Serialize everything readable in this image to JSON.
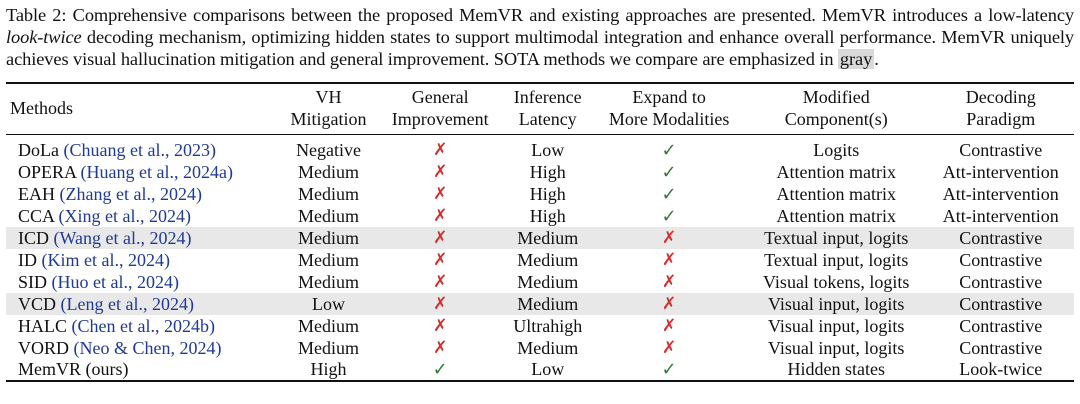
{
  "caption": {
    "label": "Table 2:",
    "part1": " Comprehensive comparisons between the proposed MemVR and existing approaches are presented. MemVR introduces a low-latency ",
    "italic": "look-twice",
    "part2": " decoding mechanism, optimizing hidden states to support multimodal integration and enhance overall performance. MemVR uniquely achieves visual hallucination mitigation and general improvement. SOTA methods we compare are emphasized in ",
    "highlight": "gray",
    "end": "."
  },
  "table": {
    "headers": [
      {
        "line1": "Methods",
        "line2": ""
      },
      {
        "line1": "VH",
        "line2": "Mitigation"
      },
      {
        "line1": "General",
        "line2": "Improvement"
      },
      {
        "line1": "Inference",
        "line2": "Latency"
      },
      {
        "line1": "Expand to",
        "line2": "More Modalities"
      },
      {
        "line1": "Modified",
        "line2": "Component(s)"
      },
      {
        "line1": "Decoding",
        "line2": "Paradigm"
      }
    ],
    "rows": [
      {
        "name": "DoLa",
        "cite": "(Chuang et al., 2023)",
        "vh": "Negative",
        "general": "✗",
        "latency": "Low",
        "expand": "✓",
        "component": "Logits",
        "paradigm": "Contrastive",
        "shaded": false
      },
      {
        "name": "OPERA",
        "cite": "(Huang et al., 2024a)",
        "vh": "Medium",
        "general": "✗",
        "latency": "High",
        "expand": "✓",
        "component": "Attention matrix",
        "paradigm": "Att-intervention",
        "shaded": false
      },
      {
        "name": "EAH",
        "cite": "(Zhang et al., 2024)",
        "vh": "Medium",
        "general": "✗",
        "latency": "High",
        "expand": "✓",
        "component": "Attention matrix",
        "paradigm": "Att-intervention",
        "shaded": false
      },
      {
        "name": "CCA",
        "cite": "(Xing et al., 2024)",
        "vh": "Medium",
        "general": "✗",
        "latency": "High",
        "expand": "✓",
        "component": "Attention matrix",
        "paradigm": "Att-intervention",
        "shaded": false
      },
      {
        "name": "ICD",
        "cite": "(Wang et al., 2024)",
        "vh": "Medium",
        "general": "✗",
        "latency": "Medium",
        "expand": "✗",
        "component": "Textual input, logits",
        "paradigm": "Contrastive",
        "shaded": true
      },
      {
        "name": "ID",
        "cite": "(Kim et al., 2024)",
        "vh": "Medium",
        "general": "✗",
        "latency": "Medium",
        "expand": "✗",
        "component": "Textual input, logits",
        "paradigm": "Contrastive",
        "shaded": false
      },
      {
        "name": "SID",
        "cite": "(Huo et al., 2024)",
        "vh": "Medium",
        "general": "✗",
        "latency": "Medium",
        "expand": "✗",
        "component": "Visual tokens, logits",
        "paradigm": "Contrastive",
        "shaded": false
      },
      {
        "name": "VCD",
        "cite": "(Leng et al., 2024)",
        "vh": "Low",
        "general": "✗",
        "latency": "Medium",
        "expand": "✗",
        "component": "Visual input, logits",
        "paradigm": "Contrastive",
        "shaded": true
      },
      {
        "name": "HALC",
        "cite": "(Chen et al., 2024b)",
        "vh": "Medium",
        "general": "✗",
        "latency": "Ultrahigh",
        "expand": "✗",
        "component": "Visual input, logits",
        "paradigm": "Contrastive",
        "shaded": false
      },
      {
        "name": "VORD",
        "cite": "(Neo & Chen, 2024)",
        "vh": "Medium",
        "general": "✗",
        "latency": "Medium",
        "expand": "✗",
        "component": "Visual input, logits",
        "paradigm": "Contrastive",
        "shaded": false
      },
      {
        "name": "MemVR (ours)",
        "cite": "",
        "vh": "High",
        "general": "✓",
        "latency": "Low",
        "expand": "✓",
        "component": "Hidden states",
        "paradigm": "Look-twice",
        "shaded": false
      }
    ]
  },
  "colors": {
    "check": "#2e7d32",
    "cross": "#d32f2f",
    "citation": "#1f3a93",
    "shade": "#e8e8e8"
  }
}
